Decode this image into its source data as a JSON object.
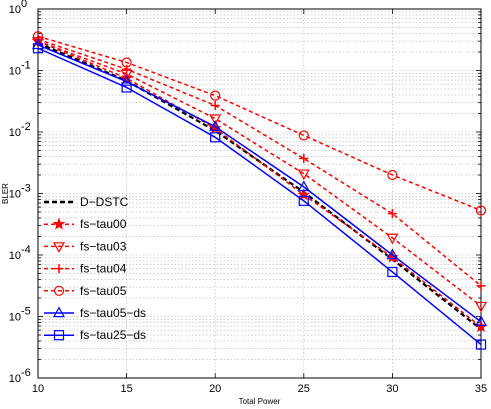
{
  "chart_data": {
    "type": "line",
    "title": "",
    "xlabel": "Total Power",
    "ylabel": "BLER",
    "y_scale": "log",
    "xlim": [
      10,
      35
    ],
    "ylim": [
      1e-06,
      1
    ],
    "x_ticks": [
      10,
      15,
      20,
      25,
      30,
      35
    ],
    "x_tick_labels": [
      "10",
      "15",
      "20",
      "25",
      "30",
      "35"
    ],
    "y_ticks": [
      1e-06,
      1e-05,
      0.0001,
      0.001,
      0.01,
      0.1,
      1
    ],
    "y_tick_labels": [
      {
        "base": "10",
        "exp": "-6"
      },
      {
        "base": "10",
        "exp": "-5"
      },
      {
        "base": "10",
        "exp": "-4"
      },
      {
        "base": "10",
        "exp": "-3"
      },
      {
        "base": "10",
        "exp": "-2"
      },
      {
        "base": "10",
        "exp": "-1"
      },
      {
        "base": "10",
        "exp": "0"
      }
    ],
    "grid": true,
    "legend_position": "bottom-left",
    "x": [
      10,
      15,
      20,
      25,
      30,
      35
    ],
    "series": [
      {
        "name": "D−DSTC",
        "color": "#000000",
        "style": "dashed",
        "marker": "none",
        "values": [
          0.28,
          0.068,
          0.0105,
          0.00105,
          8.5e-05,
          6.2e-06
        ]
      },
      {
        "name": "fs−tau00",
        "color": "#ff0000",
        "style": "dashed",
        "marker": "star",
        "values": [
          0.3,
          0.075,
          0.0115,
          0.00095,
          9.2e-05,
          6.8e-06
        ]
      },
      {
        "name": "fs−tau03",
        "color": "#ff0000",
        "style": "dashed",
        "marker": "triangle-down",
        "values": [
          0.3,
          0.088,
          0.0165,
          0.0021,
          0.00019,
          1.48e-05
        ]
      },
      {
        "name": "fs−tau04",
        "color": "#ff0000",
        "style": "dashed",
        "marker": "plus",
        "values": [
          0.32,
          0.105,
          0.027,
          0.0037,
          0.00047,
          3.15e-05
        ]
      },
      {
        "name": "fs−tau05",
        "color": "#ff0000",
        "style": "dashed",
        "marker": "circle",
        "values": [
          0.36,
          0.135,
          0.039,
          0.0088,
          0.002,
          0.00053
        ]
      },
      {
        "name": "fs−tau05−ds",
        "color": "#0000ff",
        "style": "solid",
        "marker": "triangle-up",
        "values": [
          0.26,
          0.066,
          0.0122,
          0.00128,
          0.0001,
          8.2e-06
        ]
      },
      {
        "name": "fs−tau25−ds",
        "color": "#0000ff",
        "style": "solid",
        "marker": "square",
        "values": [
          0.23,
          0.053,
          0.0082,
          0.00076,
          5.3e-05,
          3.5e-06
        ]
      }
    ]
  }
}
